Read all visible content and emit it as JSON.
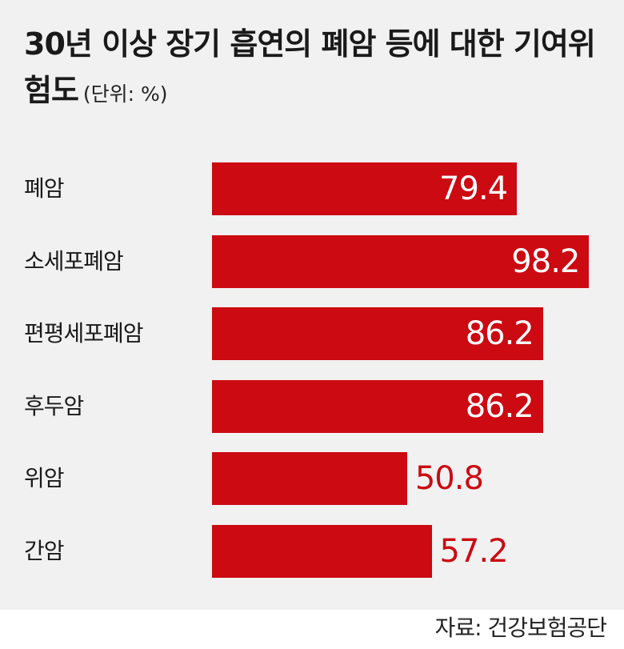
{
  "chart_data": {
    "type": "bar",
    "orientation": "horizontal",
    "title": "30년 이상 장기 흡연의 폐암 등에 대한 기여위험도",
    "unit_note": "(단위: %)",
    "categories": [
      "폐암",
      "소세포폐암",
      "편평세포폐암",
      "후두암",
      "위암",
      "간암"
    ],
    "values": [
      79.4,
      98.2,
      86.2,
      86.2,
      50.8,
      57.2
    ],
    "value_labels": [
      "79.4",
      "98.2",
      "86.2",
      "86.2",
      "50.8",
      "57.2"
    ],
    "xlim": [
      0,
      100
    ],
    "grid": false,
    "legend": "none",
    "bar_color": "#cc0a12",
    "label_outside_color": "#cc0a12",
    "label_inside_color": "#ffffff"
  },
  "source": "자료: 건강보험공단"
}
